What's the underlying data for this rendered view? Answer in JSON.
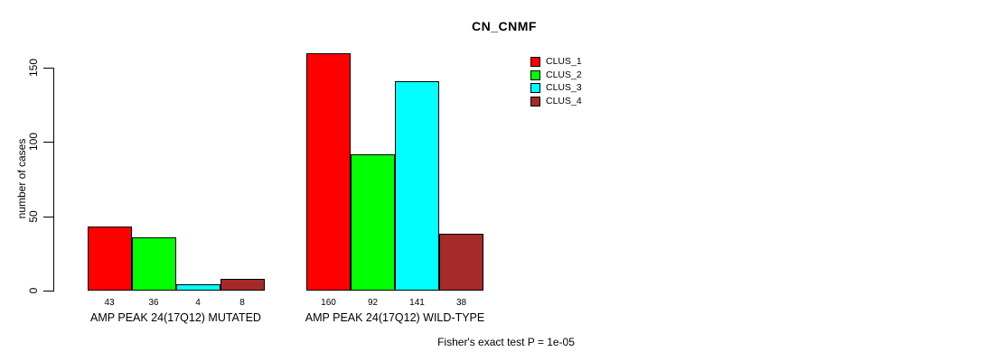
{
  "chart_data": {
    "type": "bar",
    "title": "CN_CNMF",
    "ylabel": "number of cases",
    "xlabel": "",
    "ylim": [
      0,
      160
    ],
    "yticks": [
      0,
      50,
      100,
      150
    ],
    "grid": false,
    "legend_position": "top-right",
    "categories": [
      "AMP PEAK 24(17Q12) MUTATED",
      "AMP PEAK 24(17Q12) WILD-TYPE"
    ],
    "series": [
      {
        "name": "CLUS_1",
        "color": "#ff0000",
        "values": [
          43,
          160
        ]
      },
      {
        "name": "CLUS_2",
        "color": "#00ff00",
        "values": [
          36,
          92
        ]
      },
      {
        "name": "CLUS_3",
        "color": "#00ffff",
        "values": [
          4,
          141
        ]
      },
      {
        "name": "CLUS_4",
        "color": "#a52a2a",
        "values": [
          8,
          38
        ]
      }
    ],
    "bar_value_labels": [
      [
        43,
        36,
        4,
        8
      ],
      [
        160,
        92,
        141,
        38
      ]
    ],
    "annotation": "Fisher's exact test P = 1e-05"
  }
}
